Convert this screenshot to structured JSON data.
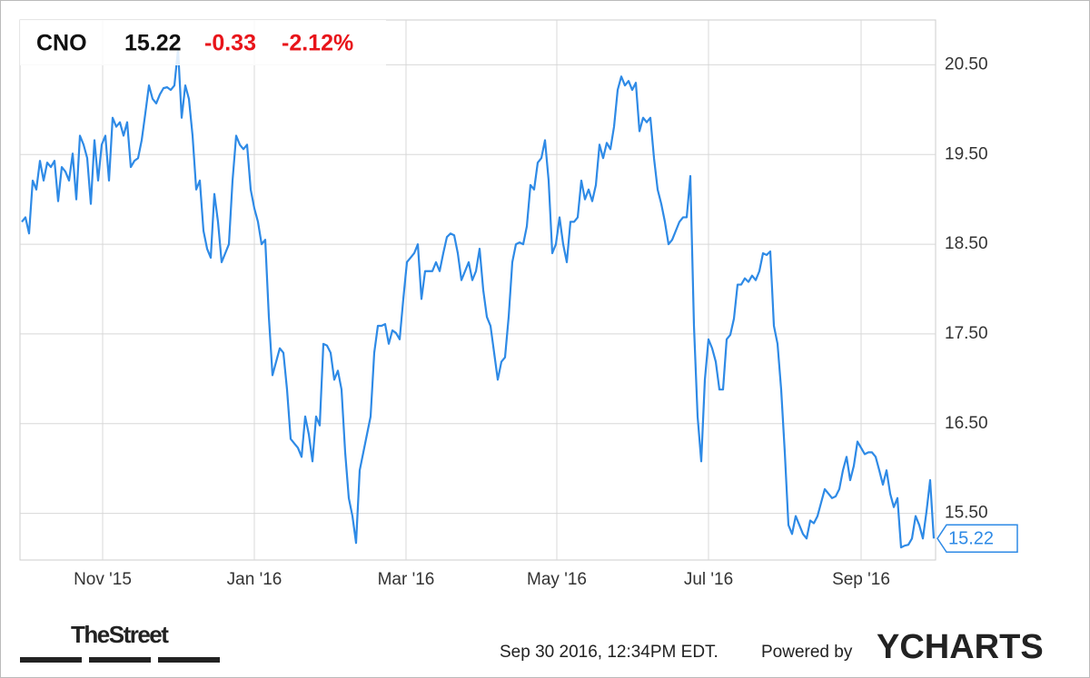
{
  "chart_data": {
    "type": "line",
    "symbol": "CNO",
    "price": 15.22,
    "change": -0.33,
    "change_pct": "-2.12%",
    "timestamp": "Sep 30 2016, 12:34PM EDT.",
    "powered_by": "Powered by",
    "brand": "YCHARTS",
    "source": "TheStreet",
    "grid": true,
    "xlim": [
      -0.5,
      251.5
    ],
    "xticks": [
      {
        "value": 22.25,
        "label": "Nov '15"
      },
      {
        "value": 64,
        "label": "Jan '16"
      },
      {
        "value": 105.75,
        "label": "Mar '16"
      },
      {
        "value": 147.25,
        "label": "May '16"
      },
      {
        "value": 189,
        "label": "Jul '16"
      },
      {
        "value": 231,
        "label": "Sep '16"
      }
    ],
    "ylim": [
      14.98,
      21.0
    ],
    "yticks": [
      {
        "value": 15.5,
        "label": "15.50"
      },
      {
        "value": 16.5,
        "label": "16.50"
      },
      {
        "value": 17.5,
        "label": "17.50"
      },
      {
        "value": 18.5,
        "label": "18.50"
      },
      {
        "value": 19.5,
        "label": "19.50"
      },
      {
        "value": 20.5,
        "label": "20.50"
      }
    ],
    "series": [
      {
        "name": "CNO",
        "color": "#2e8ae6",
        "values": [
          18.75,
          18.8,
          18.62,
          19.21,
          19.11,
          19.43,
          19.21,
          19.41,
          19.36,
          19.43,
          18.98,
          19.36,
          19.31,
          19.21,
          19.51,
          19.0,
          19.71,
          19.61,
          19.46,
          18.95,
          19.66,
          19.21,
          19.61,
          19.71,
          19.21,
          19.91,
          19.81,
          19.86,
          19.71,
          19.86,
          19.36,
          19.43,
          19.46,
          19.66,
          19.96,
          20.27,
          20.12,
          20.07,
          20.17,
          20.24,
          20.25,
          20.22,
          20.27,
          20.67,
          19.91,
          20.27,
          20.12,
          19.71,
          19.11,
          19.21,
          18.65,
          18.45,
          18.35,
          19.06,
          18.75,
          18.3,
          18.4,
          18.5,
          19.21,
          19.71,
          19.61,
          19.56,
          19.61,
          19.11,
          18.9,
          18.75,
          18.5,
          18.55,
          17.69,
          17.04,
          17.19,
          17.34,
          17.29,
          16.88,
          16.33,
          16.28,
          16.23,
          16.13,
          16.58,
          16.38,
          16.08,
          16.58,
          16.48,
          17.39,
          17.37,
          17.29,
          16.99,
          17.09,
          16.88,
          16.18,
          15.67,
          15.47,
          15.17,
          15.98,
          16.18,
          16.38,
          16.58,
          17.29,
          17.59,
          17.59,
          17.61,
          17.39,
          17.54,
          17.51,
          17.44,
          17.89,
          18.3,
          18.35,
          18.4,
          18.5,
          17.89,
          18.2,
          18.2,
          18.2,
          18.3,
          18.2,
          18.4,
          18.58,
          18.62,
          18.6,
          18.4,
          18.1,
          18.2,
          18.3,
          18.1,
          18.2,
          18.45,
          17.99,
          17.69,
          17.59,
          17.29,
          16.99,
          17.19,
          17.24,
          17.69,
          18.3,
          18.5,
          18.52,
          18.5,
          18.7,
          19.16,
          19.11,
          19.41,
          19.46,
          19.66,
          19.21,
          18.4,
          18.5,
          18.8,
          18.5,
          18.3,
          18.75,
          18.75,
          18.8,
          19.21,
          19.0,
          19.11,
          18.98,
          19.16,
          19.61,
          19.46,
          19.63,
          19.56,
          19.81,
          20.22,
          20.37,
          20.27,
          20.32,
          20.22,
          20.3,
          19.76,
          19.91,
          19.86,
          19.91,
          19.46,
          19.11,
          18.95,
          18.75,
          18.5,
          18.55,
          18.65,
          18.75,
          18.8,
          18.8,
          19.26,
          17.59,
          16.58,
          16.08,
          16.99,
          17.44,
          17.34,
          17.19,
          16.88,
          16.88,
          17.44,
          17.49,
          17.67,
          18.05,
          18.05,
          18.12,
          18.08,
          18.15,
          18.1,
          18.2,
          18.4,
          18.38,
          18.42,
          17.59,
          17.39,
          16.88,
          16.18,
          15.37,
          15.27,
          15.47,
          15.37,
          15.27,
          15.22,
          15.42,
          15.39,
          15.47,
          15.62,
          15.77,
          15.72,
          15.67,
          15.69,
          15.77,
          15.98,
          16.13,
          15.87,
          16.03,
          16.3,
          16.23,
          16.16,
          16.18,
          16.18,
          16.13,
          15.98,
          15.82,
          15.98,
          15.72,
          15.57,
          15.67,
          15.12,
          15.14,
          15.15,
          15.22,
          15.47,
          15.37,
          15.22,
          15.52,
          15.87,
          15.22
        ]
      }
    ]
  }
}
